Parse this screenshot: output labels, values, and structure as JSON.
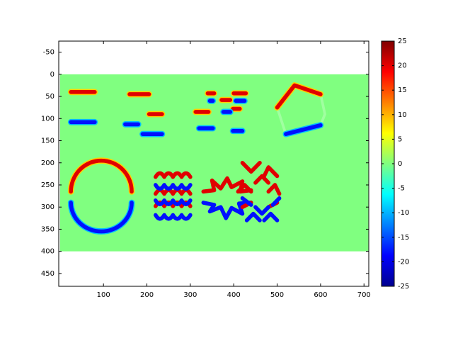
{
  "chart_data": {
    "type": "image",
    "colormap": "jet",
    "xlim": [
      -3,
      711
    ],
    "ylim": [
      -75,
      479
    ],
    "xticks": [
      100,
      200,
      300,
      400,
      500,
      600,
      700
    ],
    "yticks": [
      -50,
      0,
      50,
      100,
      150,
      200,
      250,
      300,
      350,
      400,
      450
    ],
    "image_extent": [
      0,
      710,
      0,
      400
    ],
    "clim": [
      -25,
      25
    ],
    "cticks": [
      -25,
      -20,
      -15,
      -10,
      -5,
      0,
      5,
      10,
      15,
      20,
      25
    ]
  }
}
